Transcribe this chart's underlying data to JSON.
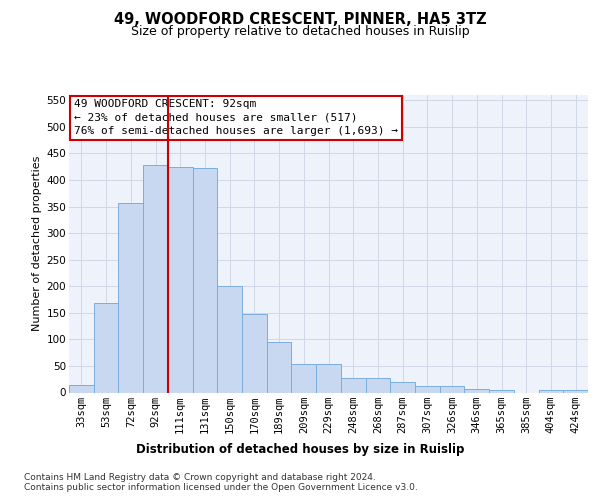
{
  "title": "49, WOODFORD CRESCENT, PINNER, HA5 3TZ",
  "subtitle": "Size of property relative to detached houses in Ruislip",
  "xlabel": "Distribution of detached houses by size in Ruislip",
  "ylabel": "Number of detached properties",
  "categories": [
    "33sqm",
    "53sqm",
    "72sqm",
    "92sqm",
    "111sqm",
    "131sqm",
    "150sqm",
    "170sqm",
    "189sqm",
    "209sqm",
    "229sqm",
    "248sqm",
    "268sqm",
    "287sqm",
    "307sqm",
    "326sqm",
    "346sqm",
    "365sqm",
    "385sqm",
    "404sqm",
    "424sqm"
  ],
  "values": [
    15,
    168,
    357,
    428,
    425,
    422,
    200,
    148,
    95,
    54,
    54,
    28,
    28,
    20,
    13,
    13,
    7,
    4,
    0,
    4,
    5
  ],
  "bar_color": "#c8d8f0",
  "bar_edge_color": "#7aaedd",
  "vline_color": "#cc0000",
  "annotation_text": "49 WOODFORD CRESCENT: 92sqm\n← 23% of detached houses are smaller (517)\n76% of semi-detached houses are larger (1,693) →",
  "annotation_box_color": "#ffffff",
  "annotation_box_edge_color": "#cc0000",
  "ylim": [
    0,
    560
  ],
  "yticks": [
    0,
    50,
    100,
    150,
    200,
    250,
    300,
    350,
    400,
    450,
    500,
    550
  ],
  "grid_color": "#d0d8e8",
  "background_color": "#eef2fa",
  "footer": "Contains HM Land Registry data © Crown copyright and database right 2024.\nContains public sector information licensed under the Open Government Licence v3.0.",
  "title_fontsize": 10.5,
  "subtitle_fontsize": 9,
  "xlabel_fontsize": 8.5,
  "ylabel_fontsize": 8,
  "tick_fontsize": 7.5,
  "annotation_fontsize": 8,
  "footer_fontsize": 6.5
}
